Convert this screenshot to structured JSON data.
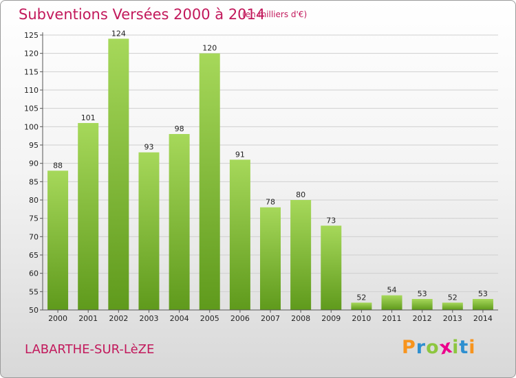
{
  "title": "Subventions Versées 2000 à 2014",
  "subtitle": "(en milliers d'€)",
  "commune": "LABARTHE-SUR-LèZE",
  "logo": {
    "letters": [
      "P",
      "r",
      "o",
      "x",
      "i",
      "t",
      "i"
    ],
    "colors": [
      "#f7941d",
      "#2e8fd0",
      "#8dc63f",
      "#ec008c",
      "#8dc63f",
      "#2e8fd0",
      "#f7941d"
    ]
  },
  "colors": {
    "bar": "#7cb82f",
    "bar_light": "#a6d85a",
    "bar_dark": "#5f9a1c",
    "title": "#c2185b"
  },
  "chart_data": {
    "type": "bar",
    "categories": [
      "2000",
      "2001",
      "2002",
      "2003",
      "2004",
      "2005",
      "2006",
      "2007",
      "2008",
      "2009",
      "2010",
      "2011",
      "2012",
      "2013",
      "2014"
    ],
    "values": [
      88,
      101,
      124,
      93,
      98,
      120,
      91,
      78,
      80,
      73,
      52,
      54,
      53,
      52,
      53
    ],
    "title": "Subventions Versées 2000 à 2014",
    "subtitle": "(en milliers d'€)",
    "xlabel": "",
    "ylabel": "",
    "ylim": [
      50,
      125
    ],
    "yticks": [
      50,
      55,
      60,
      65,
      70,
      75,
      80,
      85,
      90,
      95,
      100,
      105,
      110,
      115,
      120,
      125
    ],
    "grid": true,
    "legend": "none"
  }
}
